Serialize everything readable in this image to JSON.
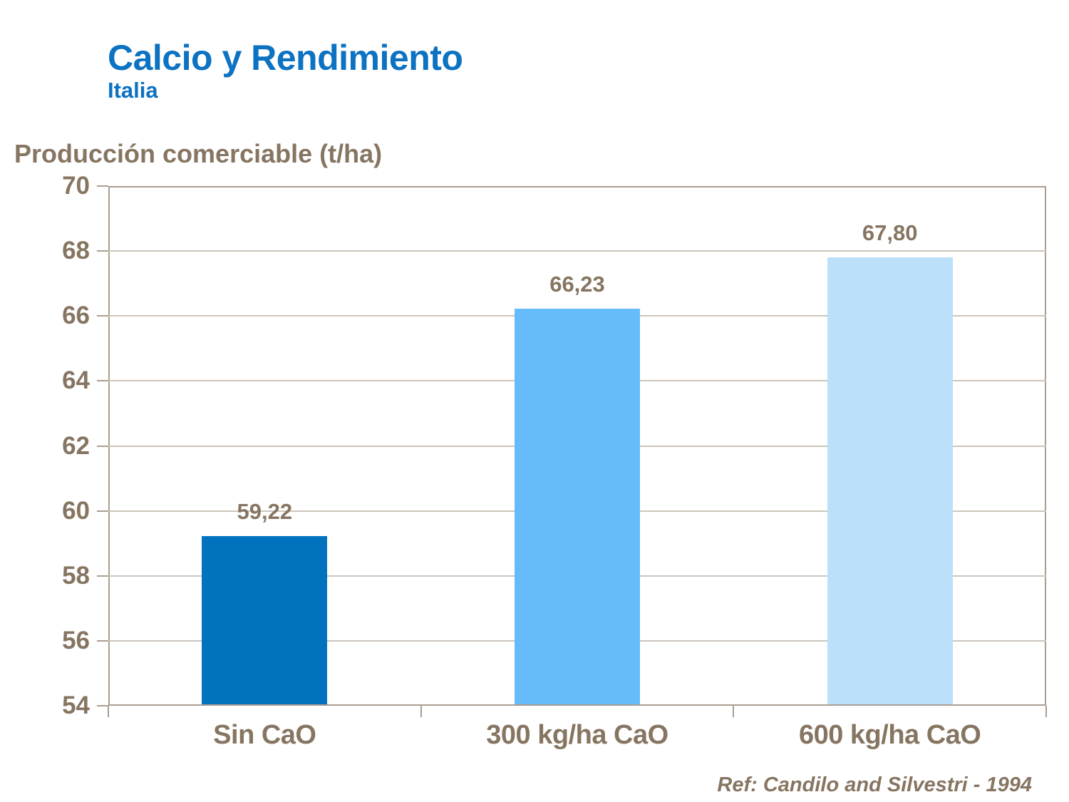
{
  "header": {
    "title": "Calcio y Rendimiento",
    "subtitle": "Italia"
  },
  "chart_data": {
    "type": "bar",
    "title": "Calcio y Rendimiento",
    "subtitle": "Italia",
    "ylabel": "Producción comerciable (t/ha)",
    "xlabel": "",
    "categories": [
      "Sin CaO",
      "300 kg/ha CaO",
      "600 kg/ha CaO"
    ],
    "values": [
      59.22,
      66.23,
      67.8
    ],
    "value_labels": [
      "59,22",
      "66,23",
      "67,80"
    ],
    "bar_colors": [
      "#0072BE",
      "#66BCFB",
      "#BCDFFA"
    ],
    "ylim": [
      54,
      70
    ],
    "ytick_step": 2,
    "grid": true,
    "legend": "none",
    "annotation": "Ref: Candilo and Silvestri - 1994"
  },
  "footer": {
    "reference": "Ref: Candilo and Silvestri - 1994"
  },
  "colors": {
    "title_blue": "#0C72C2",
    "text_brown": "#867561",
    "axis_border": "#AB9E91",
    "gridline": "#CCC5BC"
  }
}
